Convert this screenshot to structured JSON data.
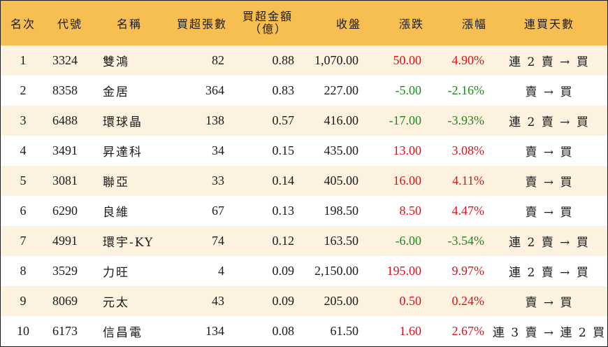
{
  "colors": {
    "header_bg": "#f7bf52",
    "row_alt_bg": "#fdf2df",
    "row_bg": "#ffffff",
    "up": "#e0101a",
    "down": "#1a8a1a"
  },
  "headers": {
    "rank": "名次",
    "code": "代號",
    "name": "名稱",
    "net_buy_lots": "買超張數",
    "net_buy_amount_line1": "買超金額",
    "net_buy_amount_line2": "（億）",
    "close": "收盤",
    "change": "漲跌",
    "change_pct": "漲幅",
    "consecutive_days": "連買天數"
  },
  "rows": [
    {
      "rank": "1",
      "code": "3324",
      "name": "雙鴻",
      "lots": "82",
      "amount": "0.88",
      "close": "1,070.00",
      "change": "50.00",
      "pct": "4.90%",
      "dir": "up",
      "trend": "連 2 賣 → 買"
    },
    {
      "rank": "2",
      "code": "8358",
      "name": "金居",
      "lots": "364",
      "amount": "0.83",
      "close": "227.00",
      "change": "-5.00",
      "pct": "-2.16%",
      "dir": "down",
      "trend": "賣 → 買"
    },
    {
      "rank": "3",
      "code": "6488",
      "name": "環球晶",
      "lots": "138",
      "amount": "0.57",
      "close": "416.00",
      "change": "-17.00",
      "pct": "-3.93%",
      "dir": "down",
      "trend": "連 2 賣 → 買"
    },
    {
      "rank": "4",
      "code": "3491",
      "name": "昇達科",
      "lots": "34",
      "amount": "0.15",
      "close": "435.00",
      "change": "13.00",
      "pct": "3.08%",
      "dir": "up",
      "trend": "賣 → 買"
    },
    {
      "rank": "5",
      "code": "3081",
      "name": "聯亞",
      "lots": "33",
      "amount": "0.14",
      "close": "405.00",
      "change": "16.00",
      "pct": "4.11%",
      "dir": "up",
      "trend": "賣 → 買"
    },
    {
      "rank": "6",
      "code": "6290",
      "name": "良維",
      "lots": "67",
      "amount": "0.13",
      "close": "198.50",
      "change": "8.50",
      "pct": "4.47%",
      "dir": "up",
      "trend": "賣 → 買"
    },
    {
      "rank": "7",
      "code": "4991",
      "name": "環宇-KY",
      "lots": "74",
      "amount": "0.12",
      "close": "163.50",
      "change": "-6.00",
      "pct": "-3.54%",
      "dir": "down",
      "trend": "連 2 賣 → 買"
    },
    {
      "rank": "8",
      "code": "3529",
      "name": "力旺",
      "lots": "4",
      "amount": "0.09",
      "close": "2,150.00",
      "change": "195.00",
      "pct": "9.97%",
      "dir": "up",
      "trend": "連 2 賣 → 買"
    },
    {
      "rank": "9",
      "code": "8069",
      "name": "元太",
      "lots": "43",
      "amount": "0.09",
      "close": "205.00",
      "change": "0.50",
      "pct": "0.24%",
      "dir": "up",
      "trend": "賣 → 買"
    },
    {
      "rank": "10",
      "code": "6173",
      "name": "信昌電",
      "lots": "134",
      "amount": "0.08",
      "close": "61.50",
      "change": "1.60",
      "pct": "2.67%",
      "dir": "up",
      "trend": "連 3 賣 → 連 2 買"
    }
  ]
}
